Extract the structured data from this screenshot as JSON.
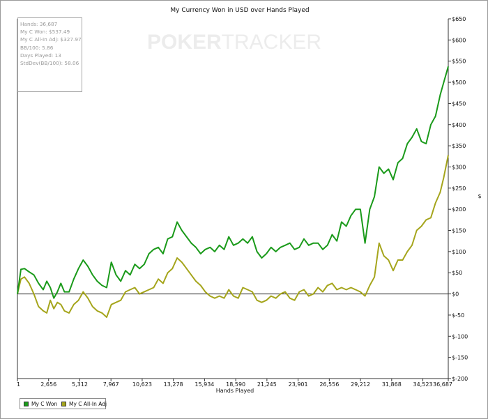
{
  "watermark": {
    "part1": "POKER",
    "part2": "TRACKER"
  },
  "stats": [
    "Hands: 36,687",
    "My C Won: $537.49",
    "My C All-In Adj: $327.97",
    "BB/100: 5.86",
    "Days Played: 13",
    "StdDev(BB/100): 58.06"
  ],
  "legend": {
    "won": "My C Won",
    "adj": "My C All-In Adj"
  },
  "colors": {
    "won": "#1a9a1a",
    "adj": "#a5a51c",
    "zero_line": "#333333"
  },
  "chart_data": {
    "type": "line",
    "title": "My Currency Won in USD over Hands Played",
    "xlabel": "Hands Played",
    "ylabel": "$",
    "xlim": [
      1,
      36687
    ],
    "ylim": [
      -200,
      650
    ],
    "x_ticks": [
      1,
      2656,
      5312,
      7967,
      10623,
      13278,
      15934,
      18590,
      21245,
      23901,
      26556,
      29212,
      31868,
      34523,
      36687
    ],
    "x_tick_labels": [
      "1",
      "2,656",
      "5,312",
      "7,967",
      "10,623",
      "13,278",
      "15,934",
      "18,590",
      "21,245",
      "23,901",
      "26,556",
      "29,212",
      "31,868",
      "34,523",
      "36,687"
    ],
    "y_ticks": [
      -200,
      -150,
      -100,
      -50,
      0,
      50,
      100,
      150,
      200,
      250,
      300,
      350,
      400,
      450,
      500,
      550,
      600,
      650
    ],
    "y_tick_labels": [
      "$-200",
      "$-150",
      "$-100",
      "$-50",
      "$0",
      "$50",
      "$100",
      "$150",
      "$200",
      "$250",
      "$300",
      "$350",
      "$400",
      "$450",
      "$500",
      "$550",
      "$600",
      "$650"
    ],
    "y_axis_side": "right",
    "grid": false,
    "legend_position": "bottom-left",
    "series": [
      {
        "name": "My C Won",
        "x": [
          1,
          300,
          600,
          1000,
          1400,
          1800,
          2200,
          2500,
          2800,
          3100,
          3400,
          3700,
          4000,
          4400,
          4800,
          5200,
          5600,
          6000,
          6400,
          6800,
          7200,
          7600,
          8000,
          8400,
          8800,
          9200,
          9600,
          10000,
          10400,
          10800,
          11200,
          11600,
          12000,
          12400,
          12800,
          13200,
          13600,
          14000,
          14400,
          14800,
          15200,
          15600,
          16000,
          16400,
          16800,
          17200,
          17600,
          18000,
          18400,
          18800,
          19200,
          19600,
          20000,
          20400,
          20800,
          21200,
          21600,
          22000,
          22400,
          22800,
          23200,
          23600,
          24000,
          24400,
          24800,
          25200,
          25600,
          26000,
          26400,
          26800,
          27200,
          27600,
          28000,
          28400,
          28800,
          29200,
          29600,
          30000,
          30400,
          30800,
          31200,
          31600,
          32000,
          32400,
          32800,
          33200,
          33600,
          34000,
          34400,
          34800,
          35200,
          35600,
          36000,
          36300,
          36687
        ],
        "y": [
          0,
          58,
          60,
          52,
          45,
          25,
          10,
          30,
          15,
          -10,
          5,
          25,
          5,
          5,
          35,
          60,
          80,
          65,
          45,
          30,
          20,
          15,
          75,
          45,
          30,
          55,
          45,
          70,
          60,
          70,
          95,
          105,
          110,
          95,
          130,
          135,
          170,
          150,
          135,
          120,
          110,
          95,
          105,
          110,
          100,
          115,
          105,
          135,
          115,
          120,
          130,
          120,
          135,
          100,
          85,
          95,
          110,
          100,
          110,
          115,
          120,
          105,
          110,
          130,
          115,
          120,
          120,
          105,
          115,
          140,
          125,
          170,
          160,
          185,
          200,
          200,
          120,
          200,
          230,
          300,
          285,
          295,
          270,
          310,
          320,
          355,
          370,
          390,
          360,
          355,
          400,
          420,
          470,
          500,
          537.49
        ]
      },
      {
        "name": "My C All-In Adj",
        "x": [
          1,
          300,
          600,
          1000,
          1400,
          1800,
          2200,
          2500,
          2800,
          3100,
          3400,
          3700,
          4000,
          4400,
          4800,
          5200,
          5600,
          6000,
          6400,
          6800,
          7200,
          7600,
          8000,
          8400,
          8800,
          9200,
          9600,
          10000,
          10400,
          10800,
          11200,
          11600,
          12000,
          12400,
          12800,
          13200,
          13600,
          14000,
          14400,
          14800,
          15200,
          15600,
          16000,
          16400,
          16800,
          17200,
          17600,
          18000,
          18400,
          18800,
          19200,
          19600,
          20000,
          20400,
          20800,
          21200,
          21600,
          22000,
          22400,
          22800,
          23200,
          23600,
          24000,
          24400,
          24800,
          25200,
          25600,
          26000,
          26400,
          26800,
          27200,
          27600,
          28000,
          28400,
          28800,
          29200,
          29600,
          30000,
          30400,
          30800,
          31200,
          31600,
          32000,
          32400,
          32800,
          33200,
          33600,
          34000,
          34400,
          34800,
          35200,
          35600,
          36000,
          36300,
          36687
        ],
        "y": [
          0,
          35,
          40,
          25,
          0,
          -30,
          -40,
          -45,
          -15,
          -35,
          -20,
          -25,
          -40,
          -45,
          -25,
          -15,
          5,
          -10,
          -30,
          -40,
          -45,
          -55,
          -25,
          -20,
          -15,
          5,
          10,
          15,
          0,
          5,
          10,
          15,
          35,
          25,
          50,
          60,
          85,
          75,
          60,
          45,
          30,
          20,
          5,
          -5,
          -10,
          -5,
          -10,
          10,
          -5,
          -10,
          15,
          10,
          5,
          -15,
          -20,
          -15,
          -5,
          -10,
          0,
          5,
          -10,
          -15,
          5,
          10,
          -5,
          0,
          15,
          5,
          20,
          25,
          10,
          15,
          10,
          15,
          10,
          5,
          -5,
          20,
          40,
          120,
          90,
          80,
          55,
          80,
          80,
          100,
          115,
          150,
          160,
          175,
          180,
          215,
          240,
          275,
          327.97
        ]
      }
    ]
  }
}
